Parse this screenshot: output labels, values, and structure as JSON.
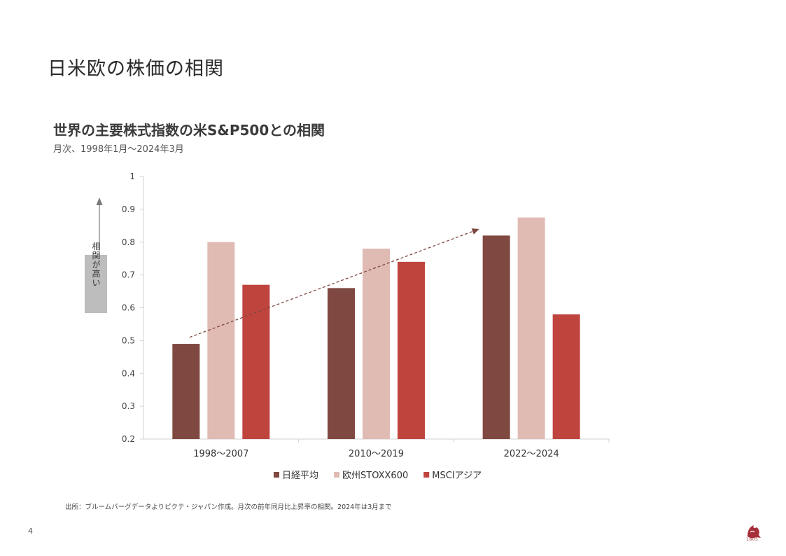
{
  "page": {
    "title": "日米欧の株価の相関",
    "page_number": "4",
    "source_note": "出所：ブルームバーグデータよりピクテ・ジャパン作成。月次の前年同月比上昇率の相関。2024年は3月まで",
    "logo_year": "1805"
  },
  "chart_data": {
    "type": "bar",
    "title": "世界の主要株式指数の米S&P500との相関",
    "subtitle": "月次、1998年1月～2024年3月",
    "categories": [
      "1998～2007",
      "2010～2019",
      "2022～2024"
    ],
    "series": [
      {
        "name": "日経平均",
        "color": "#7f4840",
        "values": [
          0.49,
          0.66,
          0.82
        ]
      },
      {
        "name": "欧州STOXX600",
        "color": "#e0bbb3",
        "values": [
          0.8,
          0.78,
          0.875
        ]
      },
      {
        "name": "MSCIアジア",
        "color": "#c0443e",
        "values": [
          0.67,
          0.74,
          0.58
        ]
      }
    ],
    "ylim": [
      0.2,
      1.0
    ],
    "yticks": [
      "0.2",
      "0.3",
      "0.4",
      "0.5",
      "0.6",
      "0.7",
      "0.8",
      "0.9",
      "1"
    ],
    "legend_position": "bottom",
    "grid": false,
    "annotation": {
      "label": "相関が高い",
      "arrow_color": "#7a7a7a",
      "box_color": "#bdbdbd"
    },
    "trend_arrow": {
      "color": "#7f4840",
      "style": "dashed",
      "from_value": 0.51,
      "to_value": 0.84
    }
  }
}
